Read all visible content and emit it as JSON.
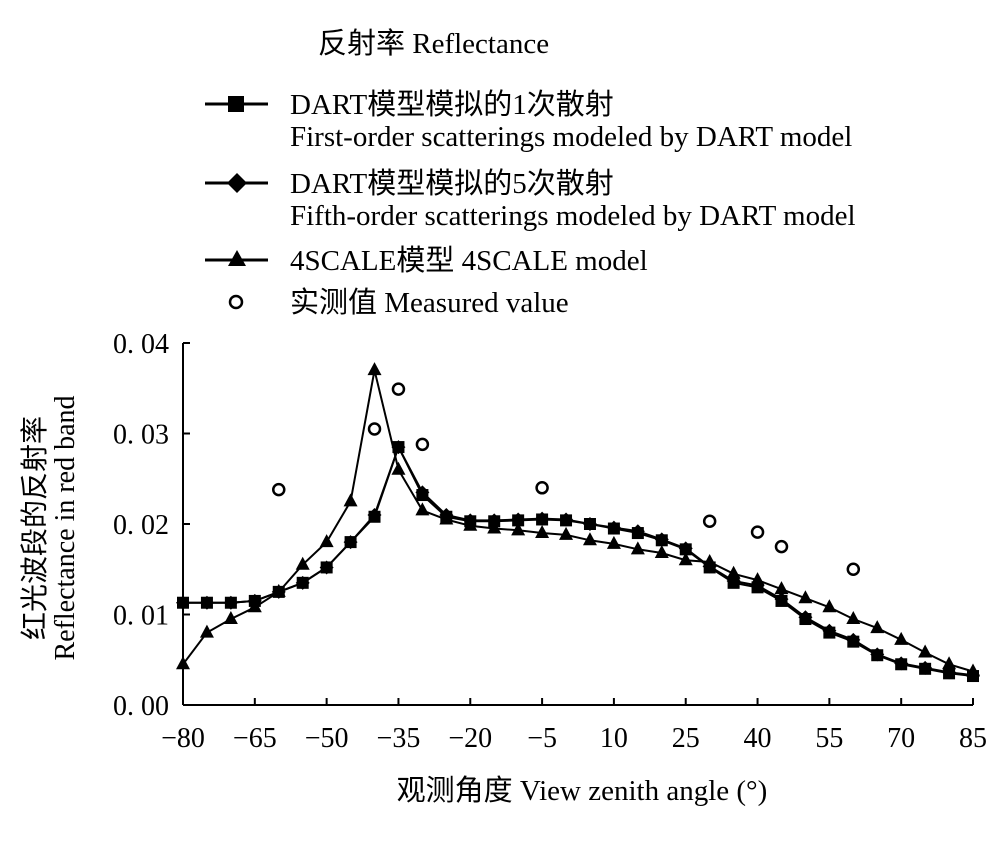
{
  "chart_data": {
    "type": "line",
    "title": "反射率 Reflectance",
    "xlabel": "观测角度 View zenith angle (°)",
    "ylabel": [
      "红光波段的反射率",
      "Reflectance in red band"
    ],
    "xlim": [
      -80,
      85
    ],
    "ylim": [
      0,
      0.04
    ],
    "xticks": [
      -80,
      -65,
      -50,
      -35,
      -20,
      -5,
      10,
      25,
      40,
      55,
      70,
      85
    ],
    "xtick_labels": [
      "−80",
      "−65",
      "−50",
      "−35",
      "−20",
      "−5",
      "10",
      "25",
      "40",
      "55",
      "70",
      "85"
    ],
    "yticks": [
      0,
      0.01,
      0.02,
      0.03,
      0.04
    ],
    "ytick_labels": [
      "0. 00",
      "0. 01",
      "0. 02",
      "0. 03",
      "0. 04"
    ],
    "grid": false,
    "legend_position": "top-left",
    "series": [
      {
        "name": "DART模型模拟的1次散射",
        "name2": "First-order scatterings modeled by DART model",
        "marker": "square",
        "x": [
          -80,
          -75,
          -70,
          -65,
          -60,
          -55,
          -50,
          -45,
          -40,
          -35,
          -30,
          -25,
          -20,
          -15,
          -10,
          -5,
          0,
          5,
          10,
          15,
          20,
          25,
          30,
          35,
          40,
          45,
          50,
          55,
          60,
          65,
          70,
          75,
          80,
          85
        ],
        "y": [
          0.0113,
          0.0113,
          0.0113,
          0.0115,
          0.0125,
          0.0135,
          0.0152,
          0.018,
          0.0208,
          0.0285,
          0.0232,
          0.0208,
          0.0203,
          0.0203,
          0.0204,
          0.0205,
          0.0204,
          0.02,
          0.0195,
          0.019,
          0.0182,
          0.0172,
          0.0152,
          0.0135,
          0.013,
          0.0115,
          0.0095,
          0.008,
          0.007,
          0.0055,
          0.0045,
          0.004,
          0.0035,
          0.0032
        ]
      },
      {
        "name": "DART模型模拟的5次散射",
        "name2": "Fifth-order scatterings modeled by DART model",
        "marker": "diamond",
        "x": [
          -80,
          -75,
          -70,
          -65,
          -60,
          -55,
          -50,
          -45,
          -40,
          -35,
          -30,
          -25,
          -20,
          -15,
          -10,
          -5,
          0,
          5,
          10,
          15,
          20,
          25,
          30,
          35,
          40,
          45,
          50,
          55,
          60,
          65,
          70,
          75,
          80,
          85
        ],
        "y": [
          0.0113,
          0.0113,
          0.0113,
          0.0115,
          0.0125,
          0.0135,
          0.0152,
          0.018,
          0.021,
          0.0285,
          0.0235,
          0.021,
          0.0204,
          0.0204,
          0.0205,
          0.0206,
          0.0205,
          0.02,
          0.0196,
          0.0192,
          0.0183,
          0.0173,
          0.0153,
          0.0137,
          0.0132,
          0.0117,
          0.0097,
          0.0082,
          0.0072,
          0.0056,
          0.0046,
          0.0041,
          0.0036,
          0.0033
        ]
      },
      {
        "name": "4SCALE模型 4SCALE model",
        "marker": "triangle",
        "x": [
          -80,
          -75,
          -70,
          -65,
          -60,
          -55,
          -50,
          -45,
          -40,
          -35,
          -30,
          -25,
          -20,
          -15,
          -10,
          -5,
          0,
          5,
          10,
          15,
          20,
          25,
          30,
          35,
          40,
          45,
          50,
          55,
          60,
          65,
          70,
          75,
          80,
          85
        ],
        "y": [
          0.0045,
          0.008,
          0.0095,
          0.0108,
          0.0125,
          0.0155,
          0.018,
          0.0225,
          0.037,
          0.026,
          0.0215,
          0.0205,
          0.0198,
          0.0195,
          0.0193,
          0.019,
          0.0188,
          0.0182,
          0.0178,
          0.0172,
          0.0168,
          0.016,
          0.0158,
          0.0145,
          0.0138,
          0.0128,
          0.0118,
          0.0108,
          0.0095,
          0.0085,
          0.0072,
          0.0058,
          0.0045,
          0.0037
        ]
      },
      {
        "name": "实测值 Measured value",
        "marker": "circle",
        "line": false,
        "x": [
          -60,
          -40,
          -35,
          -30,
          -5,
          30,
          40,
          45,
          60
        ],
        "y": [
          0.0238,
          0.0305,
          0.0349,
          0.0288,
          0.024,
          0.0203,
          0.0191,
          0.0175,
          0.015
        ]
      }
    ]
  }
}
